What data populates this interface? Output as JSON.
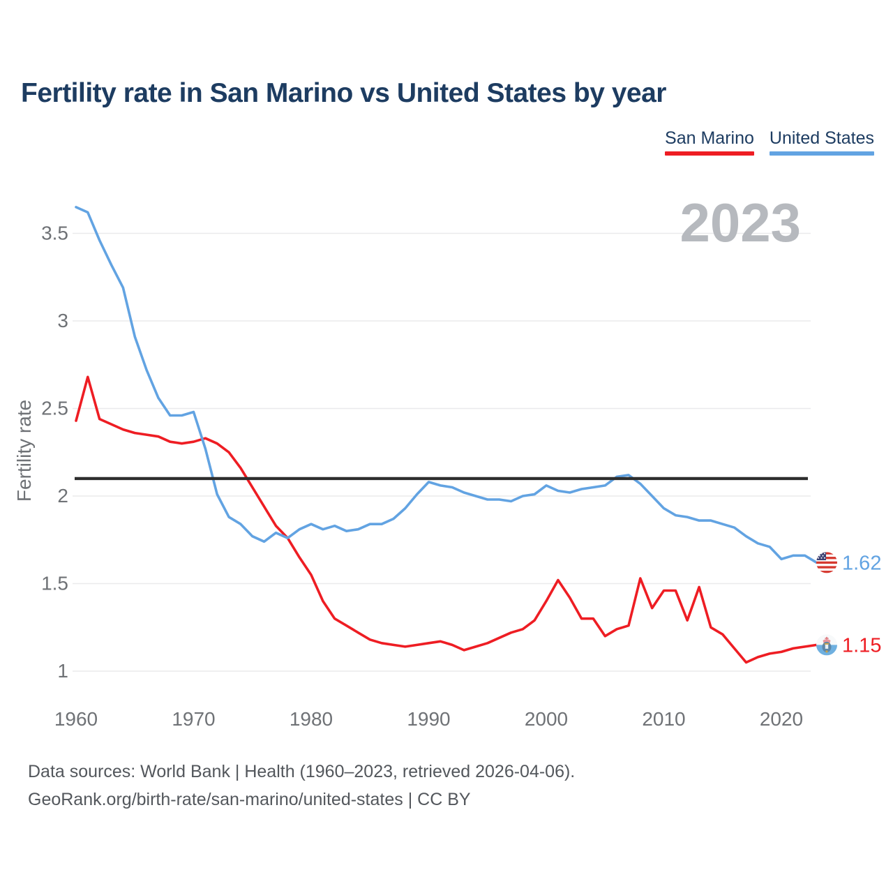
{
  "header": {
    "title": "Fertility rate in San Marino vs United States by year"
  },
  "legend": {
    "items": [
      {
        "label": "San Marino",
        "color": "#ee1d23"
      },
      {
        "label": "United States",
        "color": "#62a3e2"
      }
    ]
  },
  "watermark": "2023",
  "chart_data": {
    "type": "line",
    "title": "Fertility rate in San Marino vs United States by year",
    "xlabel": "",
    "ylabel": "Fertility rate",
    "x": [
      1960,
      1961,
      1962,
      1963,
      1964,
      1965,
      1966,
      1967,
      1968,
      1969,
      1970,
      1971,
      1972,
      1973,
      1974,
      1975,
      1976,
      1977,
      1978,
      1979,
      1980,
      1981,
      1982,
      1983,
      1984,
      1985,
      1986,
      1987,
      1988,
      1989,
      1990,
      1991,
      1992,
      1993,
      1994,
      1995,
      1996,
      1997,
      1998,
      1999,
      2000,
      2001,
      2002,
      2003,
      2004,
      2005,
      2006,
      2007,
      2008,
      2009,
      2010,
      2011,
      2012,
      2013,
      2014,
      2015,
      2016,
      2017,
      2018,
      2019,
      2020,
      2021,
      2022,
      2023
    ],
    "series": [
      {
        "name": "San Marino",
        "color": "#ee1d23",
        "values": [
          2.43,
          2.68,
          2.44,
          2.41,
          2.38,
          2.36,
          2.35,
          2.34,
          2.31,
          2.3,
          2.31,
          2.33,
          2.3,
          2.25,
          2.16,
          2.05,
          1.94,
          1.83,
          1.76,
          1.65,
          1.55,
          1.4,
          1.3,
          1.26,
          1.22,
          1.18,
          1.16,
          1.15,
          1.14,
          1.15,
          1.16,
          1.17,
          1.15,
          1.12,
          1.14,
          1.16,
          1.19,
          1.22,
          1.24,
          1.29,
          1.4,
          1.52,
          1.42,
          1.3,
          1.3,
          1.2,
          1.24,
          1.26,
          1.53,
          1.36,
          1.46,
          1.46,
          1.29,
          1.48,
          1.25,
          1.21,
          1.13,
          1.05,
          1.08,
          1.1,
          1.11,
          1.13,
          1.14,
          1.15
        ]
      },
      {
        "name": "United States",
        "color": "#62a3e2",
        "values": [
          3.65,
          3.62,
          3.46,
          3.32,
          3.19,
          2.91,
          2.72,
          2.56,
          2.46,
          2.46,
          2.48,
          2.27,
          2.01,
          1.88,
          1.84,
          1.77,
          1.74,
          1.79,
          1.76,
          1.81,
          1.84,
          1.81,
          1.83,
          1.8,
          1.81,
          1.84,
          1.84,
          1.87,
          1.93,
          2.01,
          2.08,
          2.06,
          2.05,
          2.02,
          2.0,
          1.98,
          1.98,
          1.97,
          2.0,
          2.01,
          2.06,
          2.03,
          2.02,
          2.04,
          2.05,
          2.06,
          2.11,
          2.12,
          2.07,
          2.0,
          1.93,
          1.89,
          1.88,
          1.86,
          1.86,
          1.84,
          1.82,
          1.77,
          1.73,
          1.71,
          1.64,
          1.66,
          1.66,
          1.62
        ]
      }
    ],
    "end_labels": [
      {
        "series": "United States",
        "value": "1.62"
      },
      {
        "series": "San Marino",
        "value": "1.15"
      }
    ],
    "replacement_line": 2.1,
    "xticks": [
      1960,
      1970,
      1980,
      1990,
      2000,
      2010,
      2020
    ],
    "yticks": [
      1,
      1.5,
      2,
      2.5,
      3,
      3.5
    ],
    "ylim": [
      0.9,
      3.72
    ],
    "grid": true,
    "legend_position": "top-right"
  },
  "footer": {
    "line1": "Data sources: World Bank | Health (1960–2023, retrieved 2026-04-06).",
    "line2": "GeoRank.org/birth-rate/san-marino/united-states | CC BY"
  }
}
